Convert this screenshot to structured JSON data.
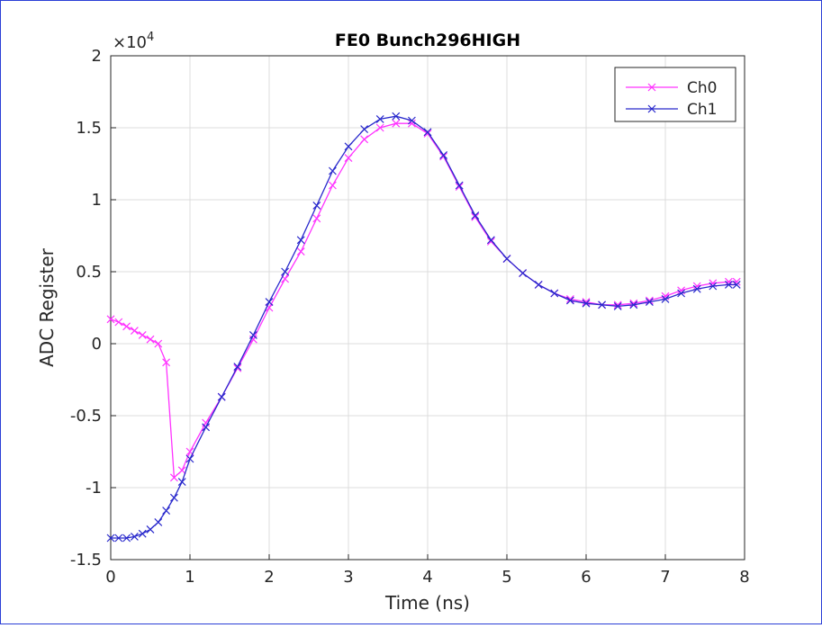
{
  "chart_data": {
    "type": "line",
    "title": "FE0 Bunch296HIGH",
    "xlabel": "Time (ns)",
    "ylabel": "ADC Register",
    "exponent_label": "×10",
    "exponent_power": "4",
    "xlim": [
      0,
      8
    ],
    "ylim": [
      -15000,
      20000
    ],
    "xticks": [
      "0",
      "1",
      "2",
      "3",
      "4",
      "5",
      "6",
      "7",
      "8"
    ],
    "yticks": [
      "-1.5",
      "-1",
      "-0.5",
      "0",
      "0.5",
      "1",
      "1.5",
      "2"
    ],
    "grid": true,
    "legend_position": "top-right",
    "marker": "x",
    "series": [
      {
        "name": "Ch0",
        "color": "#ff33ff",
        "points": [
          [
            0.0,
            1700
          ],
          [
            0.1,
            1500
          ],
          [
            0.2,
            1200
          ],
          [
            0.3,
            900
          ],
          [
            0.4,
            600
          ],
          [
            0.5,
            300
          ],
          [
            0.6,
            0
          ],
          [
            0.7,
            -1300
          ],
          [
            0.8,
            -9300
          ],
          [
            0.9,
            -8800
          ],
          [
            1.0,
            -7500
          ],
          [
            1.2,
            -5500
          ],
          [
            1.4,
            -3700
          ],
          [
            1.6,
            -1700
          ],
          [
            1.8,
            300
          ],
          [
            2.0,
            2500
          ],
          [
            2.2,
            4500
          ],
          [
            2.4,
            6400
          ],
          [
            2.6,
            8700
          ],
          [
            2.8,
            11000
          ],
          [
            3.0,
            12900
          ],
          [
            3.2,
            14200
          ],
          [
            3.4,
            15000
          ],
          [
            3.6,
            15300
          ],
          [
            3.8,
            15300
          ],
          [
            4.0,
            14600
          ],
          [
            4.2,
            13000
          ],
          [
            4.4,
            10900
          ],
          [
            4.6,
            8800
          ],
          [
            4.8,
            7100
          ],
          [
            5.0,
            5900
          ],
          [
            5.2,
            4900
          ],
          [
            5.4,
            4100
          ],
          [
            5.6,
            3500
          ],
          [
            5.8,
            3100
          ],
          [
            6.0,
            2900
          ],
          [
            6.2,
            2700
          ],
          [
            6.4,
            2700
          ],
          [
            6.6,
            2800
          ],
          [
            6.8,
            3000
          ],
          [
            7.0,
            3300
          ],
          [
            7.2,
            3700
          ],
          [
            7.4,
            4000
          ],
          [
            7.6,
            4200
          ],
          [
            7.8,
            4300
          ],
          [
            7.9,
            4300
          ]
        ]
      },
      {
        "name": "Ch1",
        "color": "#2929cc",
        "points": [
          [
            0.0,
            -13500
          ],
          [
            0.1,
            -13500
          ],
          [
            0.2,
            -13500
          ],
          [
            0.3,
            -13400
          ],
          [
            0.4,
            -13200
          ],
          [
            0.5,
            -12900
          ],
          [
            0.6,
            -12400
          ],
          [
            0.7,
            -11600
          ],
          [
            0.8,
            -10700
          ],
          [
            0.9,
            -9600
          ],
          [
            1.0,
            -8000
          ],
          [
            1.2,
            -5800
          ],
          [
            1.4,
            -3700
          ],
          [
            1.6,
            -1600
          ],
          [
            1.8,
            600
          ],
          [
            2.0,
            2900
          ],
          [
            2.2,
            5000
          ],
          [
            2.4,
            7200
          ],
          [
            2.6,
            9600
          ],
          [
            2.8,
            12000
          ],
          [
            3.0,
            13700
          ],
          [
            3.2,
            14900
          ],
          [
            3.4,
            15600
          ],
          [
            3.6,
            15800
          ],
          [
            3.8,
            15500
          ],
          [
            4.0,
            14700
          ],
          [
            4.2,
            13100
          ],
          [
            4.4,
            11000
          ],
          [
            4.6,
            8900
          ],
          [
            4.8,
            7200
          ],
          [
            5.0,
            5900
          ],
          [
            5.2,
            4900
          ],
          [
            5.4,
            4100
          ],
          [
            5.6,
            3500
          ],
          [
            5.8,
            3000
          ],
          [
            6.0,
            2800
          ],
          [
            6.2,
            2700
          ],
          [
            6.4,
            2600
          ],
          [
            6.6,
            2700
          ],
          [
            6.8,
            2900
          ],
          [
            7.0,
            3100
          ],
          [
            7.2,
            3500
          ],
          [
            7.4,
            3800
          ],
          [
            7.6,
            4000
          ],
          [
            7.8,
            4100
          ],
          [
            7.9,
            4100
          ]
        ]
      }
    ]
  }
}
